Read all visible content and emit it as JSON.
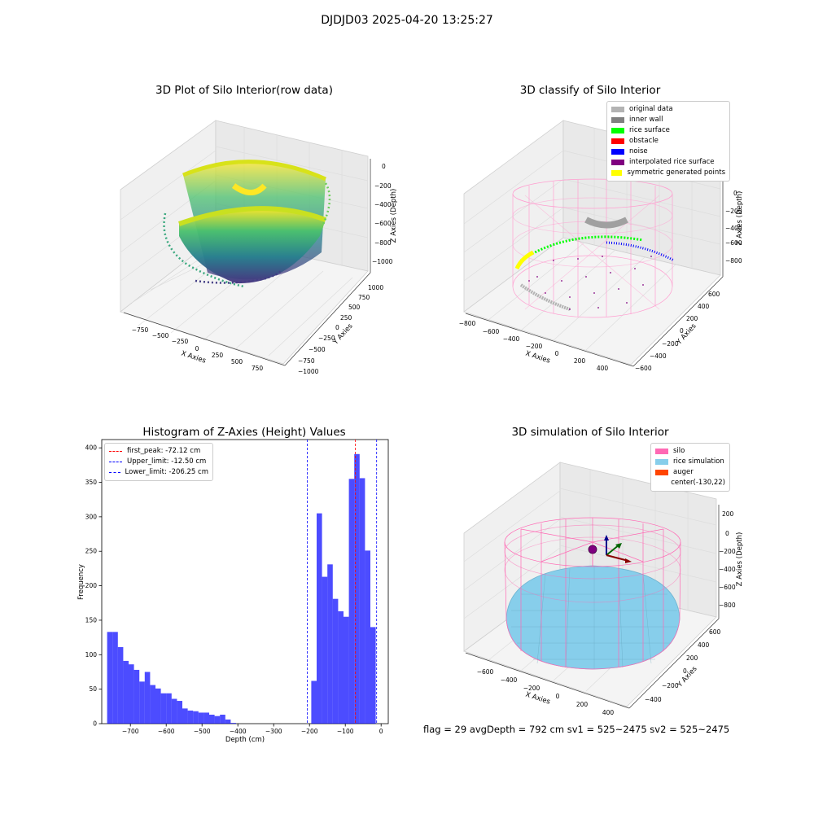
{
  "figure": {
    "suptitle": "DJDJD03 2025-04-20 13:25:27",
    "footer": "flag = 29  avgDepth = 792 cm  sv1 = 525~2475  sv2 = 525~2475"
  },
  "chart_data": [
    {
      "type": "scatter",
      "title": "3D Plot of Silo Interior(row data)",
      "xlabel": "X Axies",
      "ylabel": "Y Axies",
      "zlabel": "Z Axies (Depth)",
      "x_ticks": [
        "−750",
        "−500",
        "−250",
        "0",
        "250",
        "500",
        "750"
      ],
      "y_ticks": [
        "−1000",
        "−750",
        "−500",
        "−250",
        "0",
        "250",
        "500",
        "750",
        "1000"
      ],
      "z_ticks": [
        "0",
        "−200",
        "−400",
        "−600",
        "−800",
        "−1000"
      ],
      "colormap": "viridis"
    },
    {
      "type": "scatter",
      "title": "3D classify of Silo Interior",
      "xlabel": "X Axies",
      "ylabel": "Y Axies",
      "zlabel": "Z Axies (Depth)",
      "x_ticks": [
        "−800",
        "−600",
        "−400",
        "−200",
        "0",
        "200",
        "400"
      ],
      "y_ticks": [
        "−600",
        "−400",
        "−200",
        "0",
        "200",
        "400",
        "600"
      ],
      "z_ticks": [
        "0",
        "−200",
        "−400",
        "−600",
        "−800"
      ],
      "legend": [
        {
          "label": "original data",
          "color": "#b3b3b3"
        },
        {
          "label": "inner wall",
          "color": "#808080"
        },
        {
          "label": "rice surface",
          "color": "#00ff00"
        },
        {
          "label": "obstacle",
          "color": "#ff0000"
        },
        {
          "label": "noise",
          "color": "#0000ff"
        },
        {
          "label": "interpolated rice surface",
          "color": "#800080"
        },
        {
          "label": "symmetric generated points",
          "color": "#ffff00"
        }
      ]
    },
    {
      "type": "bar",
      "title": "Histogram of Z-Axies (Height) Values",
      "xlabel": "Depth (cm)",
      "ylabel": "Frequency",
      "xlim": [
        -780,
        20
      ],
      "ylim": [
        0,
        412
      ],
      "x_ticks": [
        -700,
        -600,
        -500,
        -400,
        -300,
        -200,
        -100,
        0
      ],
      "y_ticks": [
        0,
        50,
        100,
        150,
        200,
        250,
        300,
        350,
        400
      ],
      "bar_color": "#0000ff",
      "bin_width": 15,
      "bins": [
        {
          "x": -757.5,
          "value": 133
        },
        {
          "x": -742.5,
          "value": 133
        },
        {
          "x": -727.5,
          "value": 111
        },
        {
          "x": -712.5,
          "value": 91
        },
        {
          "x": -697.5,
          "value": 86
        },
        {
          "x": -682.5,
          "value": 78
        },
        {
          "x": -667.5,
          "value": 61
        },
        {
          "x": -652.5,
          "value": 75
        },
        {
          "x": -637.5,
          "value": 56
        },
        {
          "x": -622.5,
          "value": 51
        },
        {
          "x": -607.5,
          "value": 44
        },
        {
          "x": -592.5,
          "value": 44
        },
        {
          "x": -577.5,
          "value": 36
        },
        {
          "x": -562.5,
          "value": 33
        },
        {
          "x": -547.5,
          "value": 22
        },
        {
          "x": -532.5,
          "value": 19
        },
        {
          "x": -517.5,
          "value": 18
        },
        {
          "x": -502.5,
          "value": 16
        },
        {
          "x": -487.5,
          "value": 16
        },
        {
          "x": -472.5,
          "value": 13
        },
        {
          "x": -457.5,
          "value": 11
        },
        {
          "x": -442.5,
          "value": 13
        },
        {
          "x": -427.5,
          "value": 6
        },
        {
          "x": -412.5,
          "value": 1
        },
        {
          "x": -187.5,
          "value": 62
        },
        {
          "x": -172.5,
          "value": 305
        },
        {
          "x": -157.5,
          "value": 213
        },
        {
          "x": -142.5,
          "value": 231
        },
        {
          "x": -127.5,
          "value": 181
        },
        {
          "x": -112.5,
          "value": 163
        },
        {
          "x": -97.5,
          "value": 155
        },
        {
          "x": -82.5,
          "value": 355
        },
        {
          "x": -67.5,
          "value": 391
        },
        {
          "x": -52.5,
          "value": 356
        },
        {
          "x": -37.5,
          "value": 251
        },
        {
          "x": -22.5,
          "value": 140
        }
      ],
      "vlines": [
        {
          "label": "first_peak: -72.12 cm",
          "x": -72.12,
          "color": "#ff0000"
        },
        {
          "label": "Upper_limit: -12.50 cm",
          "x": -12.5,
          "color": "#0000ff"
        },
        {
          "label": "Lower_limit: -206.25 cm",
          "x": -206.25,
          "color": "#0000ff"
        }
      ]
    },
    {
      "type": "scatter",
      "title": "3D simulation of Silo Interior",
      "xlabel": "X Axies",
      "ylabel": "Y Axies",
      "zlabel": "Z Axies (Depth)",
      "x_ticks": [
        "−600",
        "−400",
        "−200",
        "0",
        "200",
        "400"
      ],
      "y_ticks": [
        "−400",
        "−200",
        "0",
        "200",
        "400",
        "600"
      ],
      "z_ticks": [
        "200",
        "0",
        "−200",
        "−400",
        "−600",
        "−800"
      ],
      "legend": [
        {
          "label": "silo",
          "color": "#ff69b4"
        },
        {
          "label": "rice simulation",
          "color": "#87ceeb"
        },
        {
          "label": "auger",
          "color": "#ff4500"
        },
        {
          "label": "center(-130,22)",
          "color": ""
        }
      ]
    }
  ]
}
